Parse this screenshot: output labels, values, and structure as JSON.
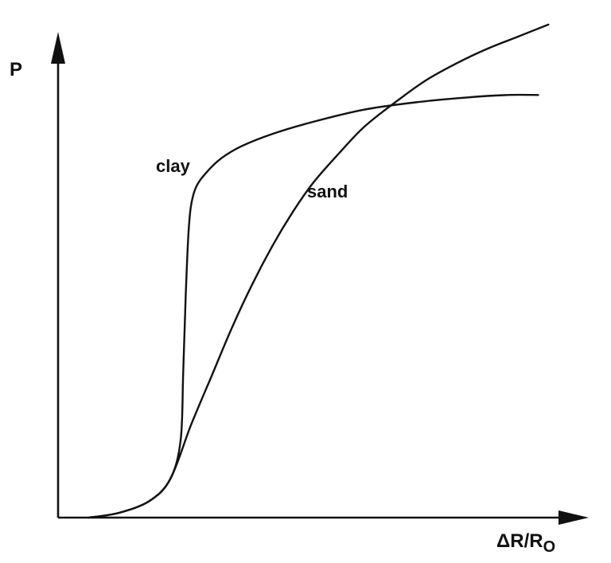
{
  "chart_data": {
    "type": "line",
    "title": "",
    "ylabel": "P",
    "xlabel_main": "ΔR/R",
    "xlabel_sub": "O",
    "x_ticks": "none",
    "y_ticks": "none",
    "grid": false,
    "legend": "none",
    "series": [
      {
        "name": "clay",
        "x": [
          0.06,
          0.12,
          0.18,
          0.22,
          0.24,
          0.245,
          0.25,
          0.255,
          0.26,
          0.27,
          0.29,
          0.32,
          0.36,
          0.42,
          0.5,
          0.6,
          0.7,
          0.8,
          0.88,
          0.94
        ],
        "y": [
          0.0,
          0.01,
          0.035,
          0.08,
          0.16,
          0.3,
          0.46,
          0.58,
          0.64,
          0.68,
          0.71,
          0.74,
          0.765,
          0.79,
          0.815,
          0.84,
          0.855,
          0.865,
          0.87,
          0.87
        ]
      },
      {
        "name": "sand",
        "x": [
          0.06,
          0.12,
          0.18,
          0.22,
          0.26,
          0.3,
          0.34,
          0.38,
          0.42,
          0.46,
          0.5,
          0.55,
          0.6,
          0.66,
          0.72,
          0.78,
          0.84,
          0.9,
          0.96
        ],
        "y": [
          0.0,
          0.01,
          0.035,
          0.08,
          0.19,
          0.29,
          0.39,
          0.48,
          0.56,
          0.63,
          0.69,
          0.75,
          0.805,
          0.855,
          0.9,
          0.935,
          0.965,
          0.99,
          1.015
        ]
      }
    ]
  }
}
